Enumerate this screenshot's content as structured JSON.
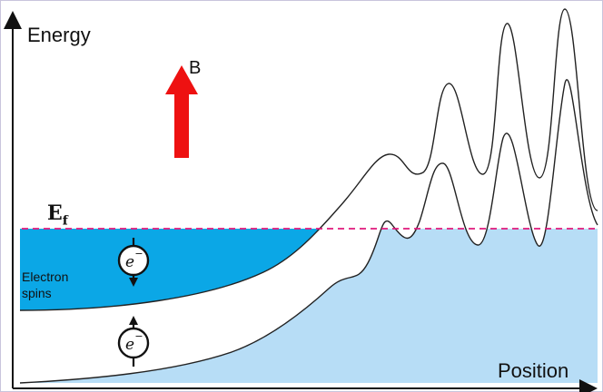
{
  "axes": {
    "y_label": "Energy",
    "x_label": "Position"
  },
  "field": {
    "label": "B",
    "color": "#ee1111"
  },
  "fermi": {
    "symbol": "E",
    "subscript": "f",
    "line_color": "#e0197c"
  },
  "spins": {
    "label_line1": "Electron",
    "label_line2": "spins",
    "electron_symbol": "e",
    "electron_charge": "−",
    "up_band_color": "#0ba7e6",
    "down_band_color": "#b7ddf6"
  },
  "icons": {
    "arrow": "up-arrow-icon",
    "spin_up": "spin-up-electron-icon",
    "spin_down": "spin-down-electron-icon"
  }
}
